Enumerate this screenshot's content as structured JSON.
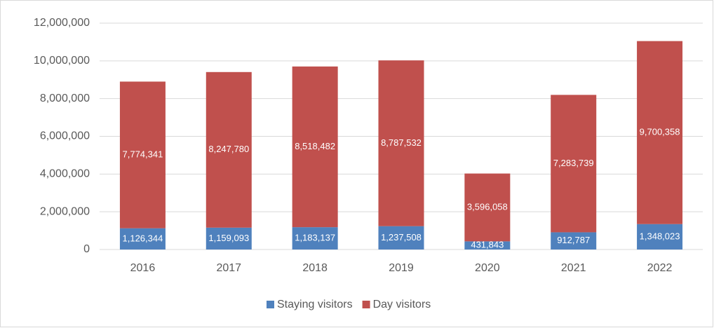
{
  "chart_data": {
    "type": "stacked_bar",
    "categories": [
      "2016",
      "2017",
      "2018",
      "2019",
      "2020",
      "2021",
      "2022"
    ],
    "series": [
      {
        "name": "Staying visitors",
        "color": "#4f81bd",
        "values": [
          1126344,
          1159093,
          1183137,
          1237508,
          431843,
          912787,
          1348023
        ],
        "value_labels": [
          "1,126,344",
          "1,159,093",
          "1,183,137",
          "1,237,508",
          "431,843",
          "912,787",
          "1,348,023"
        ]
      },
      {
        "name": "Day visitors",
        "color": "#c0504d",
        "values": [
          7774341,
          8247780,
          8518482,
          8787532,
          3596058,
          7283739,
          9700358
        ],
        "value_labels": [
          "7,774,341",
          "8,247,780",
          "8,518,482",
          "8,787,532",
          "3,596,058",
          "7,283,739",
          "9,700,358"
        ]
      }
    ],
    "ylim": [
      0,
      12000000
    ],
    "yticks": [
      0,
      {
        "value": 2000000,
        "label": "2,000,000"
      },
      {
        "value": 4000000,
        "label": "4,000,000"
      },
      {
        "value": 6000000,
        "label": "6,000,000"
      },
      {
        "value": 8000000,
        "label": "8,000,000"
      },
      {
        "value": 10000000,
        "label": "10,000,000"
      },
      {
        "value": 12000000,
        "label": "12,000,000"
      }
    ],
    "grid": true,
    "legend": "bottom"
  }
}
